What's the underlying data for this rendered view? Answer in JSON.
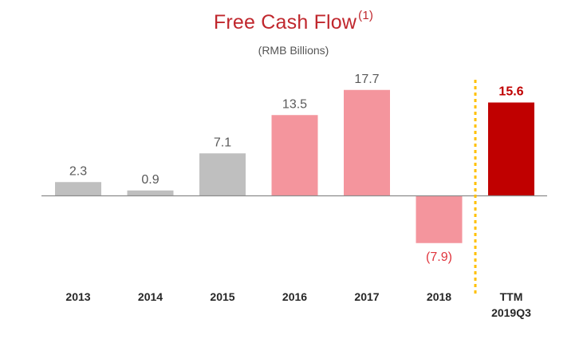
{
  "chart_data": {
    "type": "bar",
    "title": "Free Cash Flow",
    "title_superscript": "(1)",
    "subtitle": "(RMB Billions)",
    "categories": [
      "2013",
      "2014",
      "2015",
      "2016",
      "2017",
      "2018",
      "TTM 2019Q3"
    ],
    "category_lines": [
      [
        "2013"
      ],
      [
        "2014"
      ],
      [
        "2015"
      ],
      [
        "2016"
      ],
      [
        "2017"
      ],
      [
        "2018"
      ],
      [
        "TTM",
        "2019Q3"
      ]
    ],
    "values": [
      2.3,
      0.9,
      7.1,
      13.5,
      17.7,
      -7.9,
      15.6
    ],
    "value_labels": [
      "2.3",
      "0.9",
      "7.1",
      "13.5",
      "17.7",
      "(7.9)",
      "15.6"
    ],
    "bar_colors": [
      "#bfbfbf",
      "#bfbfbf",
      "#bfbfbf",
      "#f4959d",
      "#f4959d",
      "#f4959d",
      "#c00000"
    ],
    "label_colors": [
      "#595959",
      "#595959",
      "#595959",
      "#595959",
      "#595959",
      "#e0353d",
      "#c00000"
    ],
    "label_bold": [
      false,
      false,
      false,
      false,
      false,
      false,
      true
    ],
    "divider_color": "#ffc000",
    "grid": false,
    "legend": "none"
  }
}
